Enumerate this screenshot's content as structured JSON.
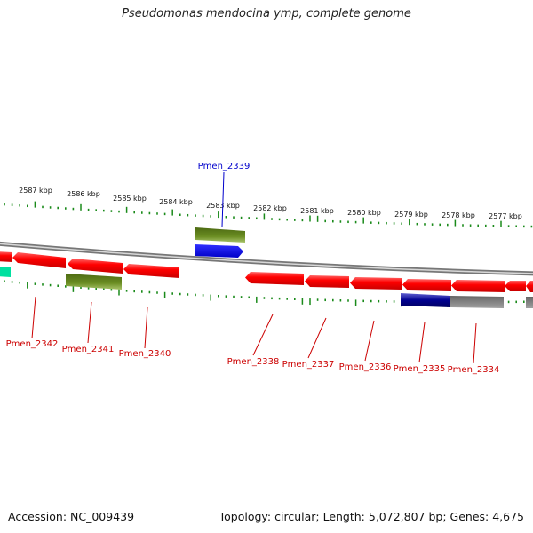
{
  "title": "Pseudomonas mendocina ymp, complete genome",
  "footer": {
    "accession": "Accession: NC_009439",
    "summary": "Topology: circular; Length: 5,072,807 bp; Genes: 4,675"
  },
  "colors": {
    "gene_red": "#ff0000",
    "label_red": "#cc0000",
    "label_blue": "#0000cc",
    "tick_green": "#1a8a1a",
    "olive": "#6b8e23",
    "blue": "#0000ff",
    "navy": "#000080",
    "grey": "#808080",
    "teal": "#00e0a0"
  },
  "scale_labels": [
    "2587 kbp",
    "2586 kbp",
    "2585 kbp",
    "2584 kbp",
    "2583 kbp",
    "2582 kbp",
    "2581 kbp",
    "2580 kbp",
    "2579 kbp",
    "2578 kbp",
    "2577 kbp"
  ],
  "gene_labels": [
    {
      "id": "lbl-2339",
      "text": "Pmen_2339",
      "strand": "forward"
    },
    {
      "id": "lbl-2342",
      "text": "Pmen_2342",
      "strand": "reverse"
    },
    {
      "id": "lbl-2341",
      "text": "Pmen_2341",
      "strand": "reverse"
    },
    {
      "id": "lbl-2340",
      "text": "Pmen_2340",
      "strand": "reverse"
    },
    {
      "id": "lbl-2338",
      "text": "Pmen_2338",
      "strand": "reverse"
    },
    {
      "id": "lbl-2337",
      "text": "Pmen_2337",
      "strand": "reverse"
    },
    {
      "id": "lbl-2336",
      "text": "Pmen_2336",
      "strand": "reverse"
    },
    {
      "id": "lbl-2335",
      "text": "Pmen_2335",
      "strand": "reverse"
    },
    {
      "id": "lbl-2334",
      "text": "Pmen_2334",
      "strand": "reverse"
    }
  ]
}
